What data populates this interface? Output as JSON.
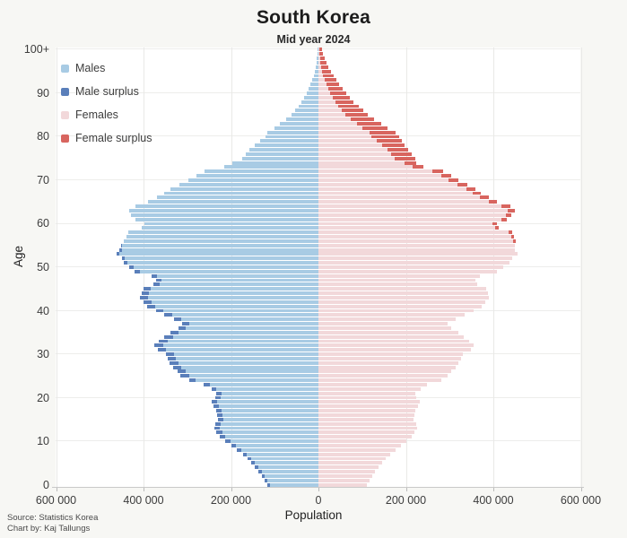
{
  "header": {
    "title": "South Korea",
    "subtitle": "Mid year 2024"
  },
  "legend": {
    "items": [
      {
        "label": "Males",
        "color": "#a8cbe4"
      },
      {
        "label": "Male surplus",
        "color": "#5a7fba"
      },
      {
        "label": "Females",
        "color": "#f2d8da"
      },
      {
        "label": "Female surplus",
        "color": "#d8655f"
      }
    ]
  },
  "footer": {
    "source": "Source: Statistics Korea",
    "credit": "Chart by: Kaj Tallungs"
  },
  "chart_data": {
    "type": "bar",
    "variant": "population-pyramid",
    "title": "South Korea",
    "subtitle": "Mid year 2024",
    "xlabel": "Population",
    "ylabel": "Age",
    "grid": true,
    "legend_position": "top-left",
    "x_range_each_side": [
      0,
      600000
    ],
    "x_tick_values": [
      -600000,
      -400000,
      -200000,
      0,
      200000,
      400000,
      600000
    ],
    "x_tick_labels": [
      "600 000",
      "400 000",
      "200 000",
      "0",
      "200 000",
      "400 000",
      "600 000"
    ],
    "y_tick_ages": [
      0,
      10,
      20,
      30,
      40,
      50,
      60,
      70,
      80,
      90,
      100
    ],
    "y_tick_labels": [
      "0",
      "10",
      "20",
      "30",
      "40",
      "50",
      "60",
      "70",
      "80",
      "90",
      "100+"
    ],
    "ages": "0 to 100+ in single-year bins, index = age",
    "surplus_note": "Outer dark tip = surplus of that sex over the other at same age",
    "colors": {
      "males": "#a8cbe4",
      "male_surplus": "#5a7fba",
      "females": "#f2d8da",
      "female_surplus": "#d8655f"
    },
    "series": [
      {
        "name": "Males",
        "values": [
          117000,
          123000,
          130000,
          137000,
          145000,
          153000,
          162000,
          173000,
          186000,
          200000,
          213000,
          225000,
          233000,
          238000,
          236000,
          230000,
          231000,
          234000,
          239000,
          245000,
          235000,
          233000,
          245000,
          262000,
          295000,
          315000,
          322000,
          332000,
          340000,
          345000,
          348000,
          368000,
          375000,
          365000,
          352000,
          338000,
          320000,
          312000,
          330000,
          352000,
          372000,
          392000,
          400000,
          408000,
          405000,
          400000,
          378000,
          372000,
          382000,
          420000,
          432000,
          445000,
          450000,
          462000,
          455000,
          452000,
          446000,
          440000,
          434000,
          404000,
          398000,
          418000,
          428000,
          432000,
          418000,
          390000,
          370000,
          352000,
          338000,
          318000,
          298000,
          280000,
          260000,
          215000,
          196000,
          174000,
          166000,
          158000,
          146000,
          133000,
          122000,
          116000,
          100000,
          88000,
          73000,
          61000,
          53000,
          46000,
          39000,
          33000,
          27000,
          22000,
          18000,
          14000,
          11000,
          9000,
          7000,
          5000,
          4000,
          3000,
          2000
        ]
      },
      {
        "name": "Females",
        "values": [
          111000,
          117000,
          123000,
          130000,
          137000,
          145000,
          153000,
          164000,
          176000,
          189000,
          201000,
          213000,
          220000,
          225000,
          223000,
          218000,
          219000,
          222000,
          227000,
          232000,
          223000,
          221000,
          233000,
          249000,
          281000,
          296000,
          303000,
          313000,
          321000,
          326000,
          330000,
          348000,
          354000,
          345000,
          333000,
          320000,
          303000,
          296000,
          313000,
          334000,
          354000,
          374000,
          382000,
          390000,
          388000,
          384000,
          364000,
          359000,
          370000,
          408000,
          422000,
          436000,
          443000,
          456000,
          450000,
          450000,
          452000,
          448000,
          444000,
          412000,
          408000,
          430000,
          442000,
          450000,
          438000,
          408000,
          390000,
          372000,
          358000,
          340000,
          320000,
          303000,
          285000,
          240000,
          224000,
          221000,
          214000,
          206000,
          197000,
          190000,
          184000,
          176000,
          158000,
          143000,
          127000,
          113000,
          102000,
          92000,
          81000,
          72000,
          64000,
          56000,
          48000,
          41000,
          34000,
          28000,
          23000,
          18000,
          14000,
          11000,
          8000
        ]
      }
    ]
  }
}
